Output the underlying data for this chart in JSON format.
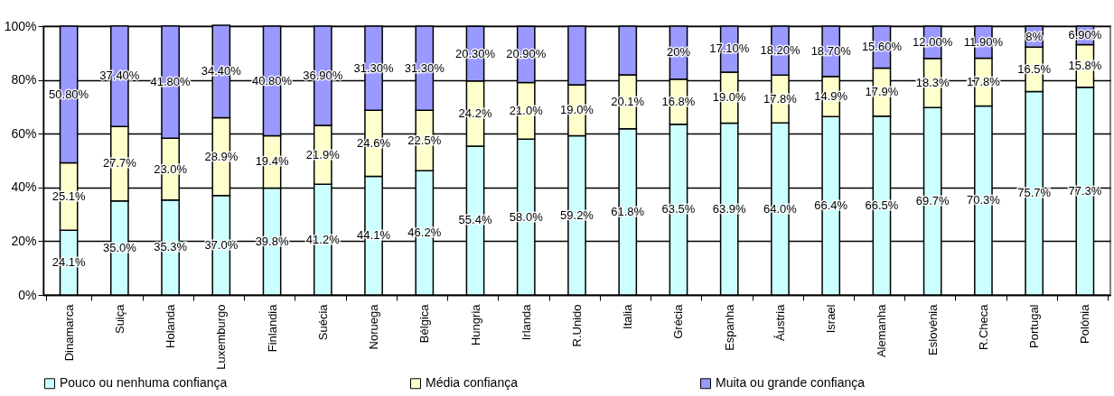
{
  "chart_data": {
    "type": "bar",
    "stacked": true,
    "categories": [
      "Dinamarca",
      "Suiça",
      "Holanda",
      "Luxemburgo",
      "Finlandia",
      "Suécia",
      "Noruega",
      "Bélgica",
      "Hungria",
      "Irlanda",
      "R.Unido",
      "Italia",
      "Grécia",
      "Espanha",
      "Áustria",
      "Israel",
      "Alemanha",
      "Eslovénia",
      "R.Checa",
      "Portugal",
      "Polónia"
    ],
    "series": [
      {
        "name": "Pouco ou nenhuma confiança",
        "color": "#ccffff",
        "values": [
          24.1,
          35.0,
          35.3,
          37.0,
          39.8,
          41.2,
          44.1,
          46.2,
          55.4,
          58.0,
          59.2,
          61.8,
          63.5,
          63.9,
          64.0,
          66.4,
          66.5,
          69.7,
          70.3,
          75.7,
          77.3
        ],
        "value_labels": [
          "24.1%",
          "35.0%",
          "35.3%",
          "37.0%",
          "39.8%",
          "41.2%",
          "44.1%",
          "46.2%",
          "55.4%",
          "58.0%",
          "59.2%",
          "61.8%",
          "63.5%",
          "63.9%",
          "64.0%",
          "66.4%",
          "66.5%",
          "69.7%",
          "70.3%",
          "75.7%",
          "77.3%"
        ]
      },
      {
        "name": "Média confiança",
        "color": "#ffffcc",
        "values": [
          25.1,
          27.7,
          23.0,
          28.9,
          19.4,
          21.9,
          24.6,
          22.5,
          24.2,
          21.0,
          19.0,
          20.1,
          16.8,
          19.0,
          17.8,
          14.9,
          17.9,
          18.3,
          17.8,
          16.5,
          15.8
        ],
        "value_labels": [
          "25.1%",
          "27.7%",
          "23.0%",
          "28.9%",
          "19.4%",
          "21.9%",
          "24.6%",
          "22.5%",
          "24.2%",
          "21.0%",
          "19.0%",
          "20.1%",
          "16.8%",
          "19.0%",
          "17.8%",
          "14.9%",
          "17.9%",
          "18.3%",
          "17.8%",
          "16.5%",
          "15.8%"
        ]
      },
      {
        "name": "Muita ou grande confiança",
        "color": "#9999ff",
        "values": [
          50.8,
          37.4,
          41.8,
          34.4,
          40.8,
          36.9,
          31.3,
          31.3,
          20.3,
          20.9,
          21.8,
          18.1,
          19.7,
          17.1,
          18.2,
          18.7,
          15.6,
          12.0,
          11.9,
          7.8,
          6.9
        ],
        "value_labels": [
          "50.80%",
          "37.40%",
          "41.80%",
          "34.40%",
          "40.80%",
          "36.90%",
          "31.30%",
          "31.30%",
          "20.30%",
          "20.90%",
          null,
          null,
          "20%",
          "17.10%",
          "18.20%",
          "18.70%",
          "15.60%",
          "12.00%",
          "11.90%",
          "8%",
          "6.90%"
        ]
      }
    ],
    "ylim": [
      0,
      100
    ],
    "yticks": [
      {
        "value": 0,
        "label": "0%"
      },
      {
        "value": 20,
        "label": "20%"
      },
      {
        "value": 40,
        "label": "40%"
      },
      {
        "value": 60,
        "label": "60%"
      },
      {
        "value": 80,
        "label": "80%"
      },
      {
        "value": 100,
        "label": "100%"
      }
    ],
    "grid": "y",
    "legend": "bottom"
  }
}
